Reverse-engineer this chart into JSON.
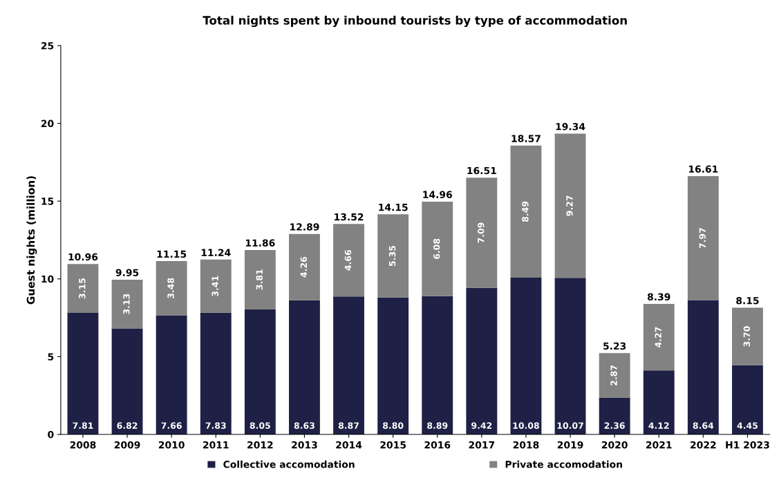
{
  "chart_data": {
    "type": "bar",
    "title": "Total nights spent by inbound tourists by type of accommodation",
    "ylabel": "Guest nights (million)",
    "categories": [
      "2008",
      "2009",
      "2010",
      "2011",
      "2012",
      "2013",
      "2014",
      "2015",
      "2016",
      "2017",
      "2018",
      "2019",
      "2020",
      "2021",
      "2022",
      "H1 2023"
    ],
    "stacked": true,
    "series": [
      {
        "name": "Collective accomodation",
        "color": "#1f2045",
        "values": [
          7.81,
          6.82,
          7.66,
          7.83,
          8.05,
          8.63,
          8.87,
          8.8,
          8.89,
          9.42,
          10.08,
          10.07,
          2.36,
          4.12,
          8.64,
          4.45
        ],
        "value_labels": [
          "7.81",
          "6.82",
          "7.66",
          "7.83",
          "8.05",
          "8.63",
          "8.87",
          "8.80",
          "8.89",
          "9.42",
          "10.08",
          "10.07",
          "2.36",
          "4.12",
          "8.64",
          "4.45"
        ]
      },
      {
        "name": "Private accomodation",
        "color": "#828282",
        "values": [
          3.15,
          3.13,
          3.48,
          3.41,
          3.81,
          4.26,
          4.66,
          5.35,
          6.08,
          7.09,
          8.49,
          9.27,
          2.87,
          4.27,
          7.97,
          3.7
        ],
        "value_labels": [
          "3.15",
          "3.13",
          "3.48",
          "3.41",
          "3.81",
          "4.26",
          "4.66",
          "5.35",
          "6.08",
          "7.09",
          "8.49",
          "9.27",
          "2.87",
          "4.27",
          "7.97",
          "3.70"
        ]
      }
    ],
    "totals": [
      "10.96",
      "9.95",
      "11.15",
      "11.24",
      "11.86",
      "12.89",
      "13.52",
      "14.15",
      "14.96",
      "16.51",
      "18.57",
      "19.34",
      "5.23",
      "8.39",
      "16.61",
      "8.15"
    ],
    "ylim": [
      0,
      25
    ],
    "yticks": [
      0,
      5,
      10,
      15,
      20,
      25
    ],
    "grid": false,
    "legend": "bottom"
  }
}
